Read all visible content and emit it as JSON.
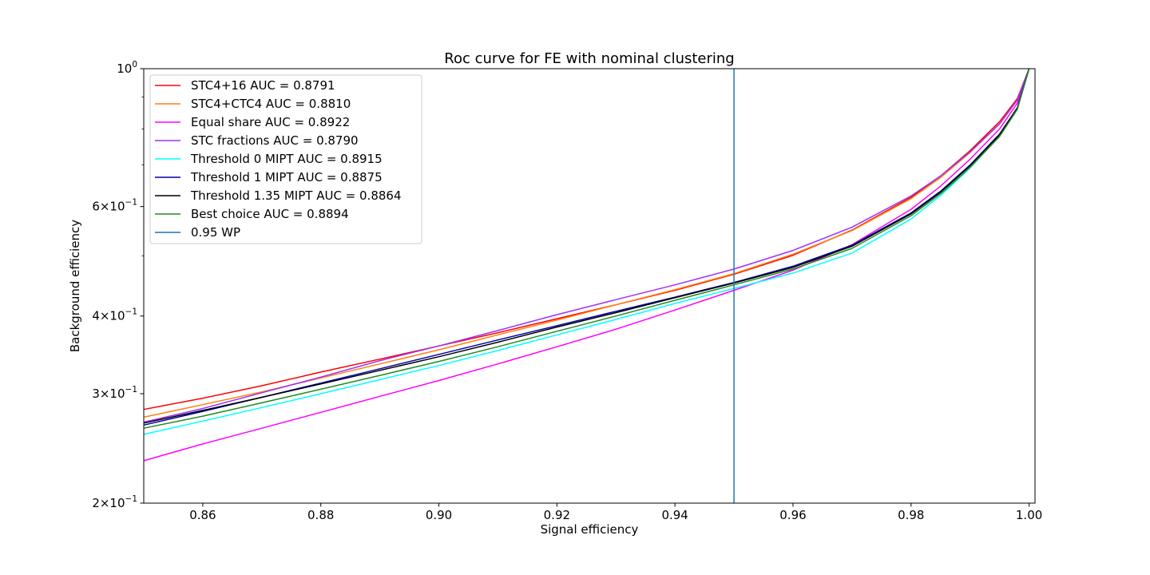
{
  "chart_data": {
    "type": "line",
    "title": "Roc curve for FE with nominal clustering",
    "xlabel": "Signal efficiency",
    "ylabel": "Background efficiency",
    "xlim": [
      0.85,
      1.001
    ],
    "ylim": [
      0.2,
      1.0
    ],
    "yscale": "log",
    "grid": false,
    "legend_position": "top-left",
    "xticks": [
      {
        "value": 0.86,
        "label": "0.86"
      },
      {
        "value": 0.88,
        "label": "0.88"
      },
      {
        "value": 0.9,
        "label": "0.90"
      },
      {
        "value": 0.92,
        "label": "0.92"
      },
      {
        "value": 0.94,
        "label": "0.94"
      },
      {
        "value": 0.96,
        "label": "0.96"
      },
      {
        "value": 0.98,
        "label": "0.98"
      },
      {
        "value": 1.0,
        "label": "1.00"
      }
    ],
    "yticks": [
      {
        "value": 0.2,
        "base": "2",
        "mult": "×",
        "pow10": "10",
        "exp": "−1"
      },
      {
        "value": 0.3,
        "base": "3",
        "mult": "×",
        "pow10": "10",
        "exp": "−1"
      },
      {
        "value": 0.4,
        "base": "4",
        "mult": "×",
        "pow10": "10",
        "exp": "−1"
      },
      {
        "value": 0.6,
        "base": "6",
        "mult": "×",
        "pow10": "10",
        "exp": "−1"
      },
      {
        "value": 1.0,
        "base": "",
        "mult": "",
        "pow10": "10",
        "exp": "0"
      }
    ],
    "y_minor_ticks": [
      0.5,
      0.7,
      0.8,
      0.9
    ],
    "x": [
      0.85,
      0.86,
      0.87,
      0.88,
      0.89,
      0.9,
      0.91,
      0.92,
      0.93,
      0.94,
      0.95,
      0.96,
      0.97,
      0.98,
      0.985,
      0.99,
      0.995,
      0.998,
      1.0
    ],
    "series": [
      {
        "name": "STC4+16 AUC = 0.8791",
        "color": "#ff0000",
        "values": [
          0.283,
          0.295,
          0.309,
          0.325,
          0.341,
          0.358,
          0.376,
          0.396,
          0.417,
          0.44,
          0.467,
          0.501,
          0.55,
          0.621,
          0.672,
          0.738,
          0.822,
          0.895,
          1.0
        ]
      },
      {
        "name": "STC4+CTC4 AUC = 0.8810",
        "color": "#ff7f0e",
        "values": [
          0.275,
          0.288,
          0.302,
          0.318,
          0.335,
          0.353,
          0.373,
          0.394,
          0.417,
          0.441,
          0.468,
          0.503,
          0.549,
          0.618,
          0.668,
          0.733,
          0.815,
          0.89,
          1.0
        ]
      },
      {
        "name": "Equal share AUC = 0.8922",
        "color": "#ff00ff",
        "values": [
          0.234,
          0.249,
          0.264,
          0.28,
          0.297,
          0.315,
          0.335,
          0.357,
          0.381,
          0.409,
          0.44,
          0.474,
          0.521,
          0.594,
          0.647,
          0.715,
          0.8,
          0.88,
          1.0
        ]
      },
      {
        "name": "STC fractions AUC = 0.8790",
        "color": "#9b30ff",
        "values": [
          0.27,
          0.284,
          0.301,
          0.319,
          0.339,
          0.358,
          0.379,
          0.402,
          0.425,
          0.449,
          0.476,
          0.51,
          0.556,
          0.624,
          0.672,
          0.735,
          0.815,
          0.89,
          1.0
        ]
      },
      {
        "name": "Threshold 0 MIPT AUC = 0.8915",
        "color": "#00ffff",
        "values": [
          0.258,
          0.271,
          0.285,
          0.3,
          0.316,
          0.333,
          0.352,
          0.373,
          0.395,
          0.419,
          0.443,
          0.469,
          0.505,
          0.573,
          0.625,
          0.692,
          0.78,
          0.86,
          1.0
        ]
      },
      {
        "name": "Threshold 1 MIPT AUC = 0.8875",
        "color": "#0000aa",
        "values": [
          0.267,
          0.281,
          0.296,
          0.312,
          0.329,
          0.347,
          0.366,
          0.386,
          0.407,
          0.429,
          0.453,
          0.481,
          0.52,
          0.586,
          0.635,
          0.7,
          0.785,
          0.865,
          1.0
        ]
      },
      {
        "name": "Threshold 1.35 MIPT AUC = 0.8864",
        "color": "#000000",
        "values": [
          0.269,
          0.282,
          0.296,
          0.311,
          0.327,
          0.344,
          0.363,
          0.384,
          0.405,
          0.428,
          0.452,
          0.479,
          0.518,
          0.584,
          0.633,
          0.698,
          0.783,
          0.863,
          1.0
        ]
      },
      {
        "name": "Best choice AUC = 0.8894",
        "color": "#228b22",
        "values": [
          0.264,
          0.276,
          0.29,
          0.305,
          0.321,
          0.338,
          0.357,
          0.378,
          0.4,
          0.424,
          0.449,
          0.476,
          0.514,
          0.58,
          0.629,
          0.694,
          0.778,
          0.86,
          1.0
        ]
      }
    ],
    "wp_line": {
      "name": "0.95 WP",
      "x": 0.95,
      "color": "#1f77b4"
    }
  }
}
